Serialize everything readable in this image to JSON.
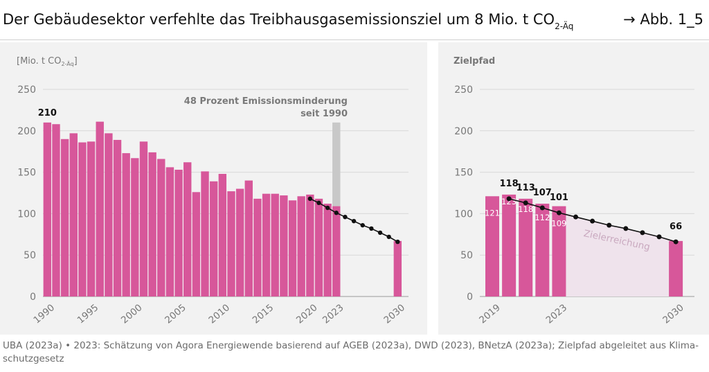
{
  "header": {
    "title_main": "Der Gebäudesektor verfehlte das Treibhausgasemissionsziel um 8 Mio. t CO",
    "title_sub": "2-Äq",
    "figure_ref": "→ Abb. 1_5"
  },
  "footer": {
    "source": "UBA (2023a) • 2023: Schätzung von Agora Energiewende basierend auf AGEB (2023a), DWD (2023), BNetzA (2023a); Zielpfad abgeleitet aus Klima-schutzgesetz"
  },
  "colors": {
    "bar": "#d7579a",
    "target_line": "#111111",
    "reduction_bar": "#c8c8c8",
    "target_area": "#efe3ec",
    "grid": "#d8d8d8",
    "tick": "#777777",
    "label_light": "#ffffff",
    "annotation": "#7a7a7a"
  },
  "chart_data": [
    {
      "type": "bar",
      "ylabel_main": "[Mio. t CO",
      "ylabel_sub": "2-Äq",
      "ylabel_end": "]",
      "ylim": [
        0,
        250
      ],
      "yticks": [
        0,
        50,
        100,
        150,
        200,
        250
      ],
      "x_tick_labels": [
        "1990",
        "1995",
        "2000",
        "2005",
        "2010",
        "2015",
        "2020",
        "2023",
        "2030"
      ],
      "grid": true,
      "series": [
        {
          "years": [
            1990,
            1991,
            1992,
            1993,
            1994,
            1995,
            1996,
            1997,
            1998,
            1999,
            2000,
            2001,
            2002,
            2003,
            2004,
            2005,
            2006,
            2007,
            2008,
            2009,
            2010,
            2011,
            2012,
            2013,
            2014,
            2015,
            2016,
            2017,
            2018,
            2019,
            2020,
            2021,
            2022,
            2023,
            2030
          ],
          "values": [
            210,
            208,
            190,
            197,
            186,
            187,
            211,
            197,
            189,
            173,
            167,
            187,
            174,
            166,
            156,
            153,
            162,
            126,
            151,
            139,
            148,
            127,
            130,
            140,
            118,
            124,
            124,
            122,
            116,
            121,
            123,
            118,
            112,
            109,
            67
          ]
        },
        {
          "x": [
            2020,
            2021,
            2022,
            2023,
            2024,
            2025,
            2026,
            2027,
            2028,
            2029,
            2030
          ],
          "values": [
            118,
            113,
            107,
            101,
            96,
            91,
            86,
            82,
            77,
            72,
            66
          ]
        }
      ],
      "reduction_marker": {
        "year": 2023,
        "from": 109,
        "to": 210
      },
      "annotations": {
        "first_value": "210",
        "reduction_line1": "48 Prozent Emissionsminderung",
        "reduction_line2": "seit 1990"
      }
    },
    {
      "type": "bar",
      "title": "Zielpfad",
      "ylim": [
        0,
        250
      ],
      "yticks": [
        0,
        50,
        100,
        150,
        200,
        250
      ],
      "x_tick_labels": [
        "2019",
        "2023",
        "2030"
      ],
      "grid": true,
      "series": [
        {
          "years": [
            2019,
            2020,
            2021,
            2022,
            2023,
            2030
          ],
          "values": [
            121,
            123,
            118,
            112,
            109,
            67
          ],
          "data_labels": [
            "121",
            "123",
            "118",
            "112",
            "109",
            ""
          ]
        },
        {
          "x": [
            2020,
            2021,
            2022,
            2023,
            2024,
            2025,
            2026,
            2027,
            2028,
            2029,
            2030
          ],
          "values": [
            118,
            113,
            107,
            101,
            96,
            91,
            86,
            82,
            77,
            72,
            66
          ],
          "data_labels": [
            "118",
            "113",
            "107",
            "101",
            "",
            "",
            "",
            "",
            "",
            "",
            "66"
          ]
        }
      ],
      "area_label": "Zielerreichung"
    }
  ]
}
